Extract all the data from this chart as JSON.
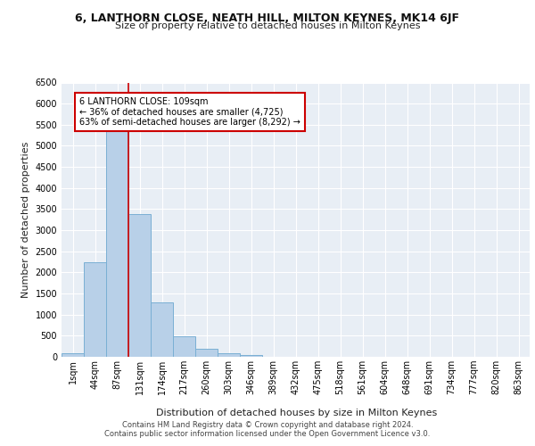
{
  "title": "6, LANTHORN CLOSE, NEATH HILL, MILTON KEYNES, MK14 6JF",
  "subtitle": "Size of property relative to detached houses in Milton Keynes",
  "xlabel": "Distribution of detached houses by size in Milton Keynes",
  "ylabel": "Number of detached properties",
  "footer_line1": "Contains HM Land Registry data © Crown copyright and database right 2024.",
  "footer_line2": "Contains public sector information licensed under the Open Government Licence v3.0.",
  "annotation_title": "6 LANTHORN CLOSE: 109sqm",
  "annotation_line1": "← 36% of detached houses are smaller (4,725)",
  "annotation_line2": "63% of semi-detached houses are larger (8,292) →",
  "bar_labels": [
    "1sqm",
    "44sqm",
    "87sqm",
    "131sqm",
    "174sqm",
    "217sqm",
    "260sqm",
    "303sqm",
    "346sqm",
    "389sqm",
    "432sqm",
    "475sqm",
    "518sqm",
    "561sqm",
    "604sqm",
    "648sqm",
    "691sqm",
    "734sqm",
    "777sqm",
    "820sqm",
    "863sqm"
  ],
  "bar_values": [
    75,
    2250,
    5450,
    3380,
    1300,
    490,
    185,
    80,
    40,
    10,
    5,
    2,
    0,
    0,
    0,
    0,
    0,
    0,
    0,
    0,
    0
  ],
  "bar_color": "#b8d0e8",
  "bar_edge_color": "#7aafd4",
  "vline_color": "#cc0000",
  "annotation_box_color": "#ffffff",
  "annotation_box_edge": "#cc0000",
  "background_color": "#e8eef5",
  "grid_color": "#ffffff",
  "ylim": [
    0,
    6500
  ],
  "yticks": [
    0,
    500,
    1000,
    1500,
    2000,
    2500,
    3000,
    3500,
    4000,
    4500,
    5000,
    5500,
    6000,
    6500
  ],
  "title_fontsize": 9,
  "subtitle_fontsize": 8,
  "ylabel_fontsize": 8,
  "xlabel_fontsize": 8,
  "tick_fontsize": 7,
  "footer_fontsize": 6
}
